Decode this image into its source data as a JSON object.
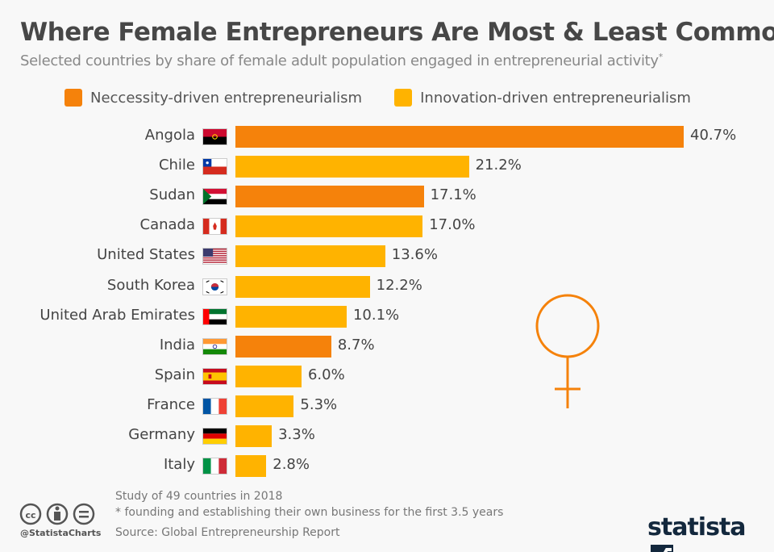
{
  "title": "Where Female Entrepreneurs Are Most & Least Common",
  "subtitle": "Selected countries by share of female adult population engaged in entrepreneurial activity",
  "subtitle_mark": "*",
  "colors": {
    "necessity": "#f5820b",
    "innovation": "#ffb300",
    "female_symbol": "#f5820b"
  },
  "chart_data": {
    "type": "bar",
    "orientation": "horizontal",
    "legend": [
      {
        "name": "Neccessity-driven entrepreneurialism",
        "key": "necessity"
      },
      {
        "name": "Innovation-driven entrepreneurialism",
        "key": "innovation"
      }
    ],
    "legend_placement": "top",
    "grid": false,
    "unit": "%",
    "categories": [
      "Angola",
      "Chile",
      "Sudan",
      "Canada",
      "United States",
      "South Korea",
      "United Arab Emirates",
      "India",
      "Spain",
      "France",
      "Germany",
      "Italy"
    ],
    "values": [
      40.7,
      21.2,
      17.1,
      17.0,
      13.6,
      12.2,
      10.1,
      8.7,
      6.0,
      5.3,
      3.3,
      2.8
    ],
    "labels": [
      "40.7%",
      "21.2%",
      "17.1%",
      "17.0%",
      "13.6%",
      "12.2%",
      "10.1%",
      "8.7%",
      "6.0%",
      "5.3%",
      "3.3%",
      "2.8%"
    ],
    "series_type": [
      "necessity",
      "innovation",
      "necessity",
      "innovation",
      "innovation",
      "innovation",
      "innovation",
      "necessity",
      "innovation",
      "innovation",
      "innovation",
      "innovation"
    ]
  },
  "footer": {
    "note": "Study of 49 countries in 2018",
    "footnote": "* founding and establishing their own business for the first 3.5 years",
    "source": "Source: Global Entrepreneurship Report",
    "handle": "@StatistaCharts",
    "logo": "statista"
  }
}
